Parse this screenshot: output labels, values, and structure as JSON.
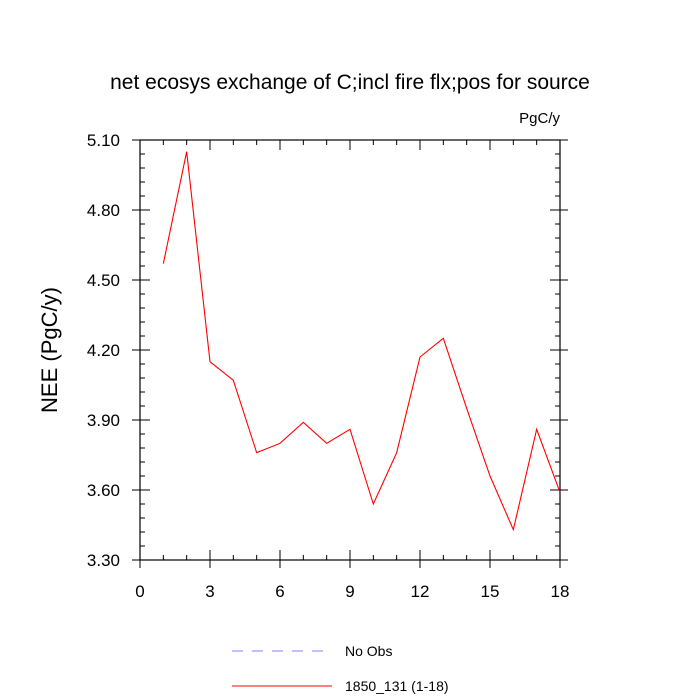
{
  "chart_data": {
    "type": "line",
    "title": "net ecosys exchange of C;incl fire flx;pos for source",
    "units_label": "PgC/y",
    "ylabel": "NEE  (PgC/y)",
    "xlabel": "",
    "xlim": [
      0,
      18
    ],
    "ylim": [
      3.3,
      5.1
    ],
    "x_ticks": [
      0,
      3,
      6,
      9,
      12,
      15,
      18
    ],
    "x_tick_labels": [
      "0",
      "3",
      "6",
      "9",
      "12",
      "15",
      "18"
    ],
    "y_ticks": [
      3.3,
      3.6,
      3.9,
      4.2,
      4.5,
      4.8,
      5.1
    ],
    "y_tick_labels": [
      "3.30",
      "3.60",
      "3.90",
      "4.20",
      "4.50",
      "4.80",
      "5.10"
    ],
    "grid": false,
    "legend_position": "bottom",
    "series": [
      {
        "name": "1850_131 (1-18)",
        "color": "#ff0000",
        "style": "solid",
        "x": [
          1,
          2,
          3,
          4,
          5,
          6,
          7,
          8,
          9,
          10,
          11,
          12,
          13,
          14,
          15,
          16,
          17,
          18
        ],
        "values": [
          4.57,
          5.05,
          4.15,
          4.07,
          3.76,
          3.8,
          3.89,
          3.8,
          3.86,
          3.54,
          3.76,
          4.17,
          4.25,
          3.95,
          3.66,
          3.43,
          3.86,
          3.59
        ]
      }
    ],
    "legend": [
      {
        "label": "No Obs",
        "color": "#8080ff",
        "style": "dashed"
      },
      {
        "label": "1850_131 (1-18)",
        "color": "#ff0000",
        "style": "solid"
      }
    ]
  }
}
